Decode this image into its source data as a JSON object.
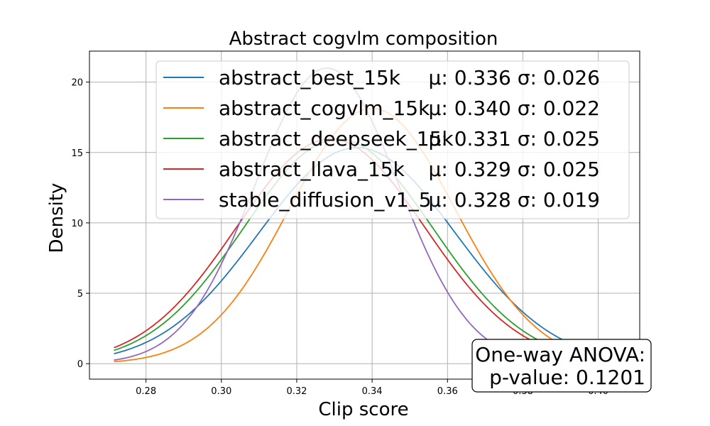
{
  "chart_data": {
    "type": "line",
    "title": "Abstract cogvlm composition",
    "xlabel": "Clip score",
    "ylabel": "Density",
    "xlim": [
      0.265,
      0.411
    ],
    "ylim": [
      -1.1,
      22.2
    ],
    "xticks": [
      0.28,
      0.3,
      0.32,
      0.34,
      0.36,
      0.38,
      0.4
    ],
    "xtick_labels": [
      "0.28",
      "0.30",
      "0.32",
      "0.34",
      "0.36",
      "0.38",
      "0.40"
    ],
    "yticks": [
      0,
      5,
      10,
      15,
      20
    ],
    "ytick_labels": [
      "0",
      "5",
      "10",
      "15",
      "20"
    ],
    "grid": true,
    "legend_position": "top-right",
    "x_range_plotted": [
      0.2715,
      0.405
    ],
    "series": [
      {
        "name": "abstract_best_15k",
        "stats": "μ: 0.336 σ: 0.026",
        "mean": 0.336,
        "std": 0.026,
        "color": "#1f77b4"
      },
      {
        "name": "abstract_cogvlm_15k",
        "stats": "μ: 0.340 σ: 0.022",
        "mean": 0.34,
        "std": 0.022,
        "color": "#ff7f0e"
      },
      {
        "name": "abstract_deepseek_15k",
        "stats": "μ: 0.331 σ: 0.025",
        "mean": 0.331,
        "std": 0.025,
        "color": "#2ca02c"
      },
      {
        "name": "abstract_llava_15k",
        "stats": "μ: 0.329 σ: 0.025",
        "mean": 0.329,
        "std": 0.025,
        "color": "#d62728"
      },
      {
        "name": "stable_diffusion_v1_5",
        "stats": "μ: 0.328 σ: 0.019",
        "mean": 0.328,
        "std": 0.019,
        "color": "#9467bd"
      }
    ],
    "annotation": {
      "line1": "One-way ANOVA:",
      "line2": "p-value: 0.1201"
    }
  }
}
